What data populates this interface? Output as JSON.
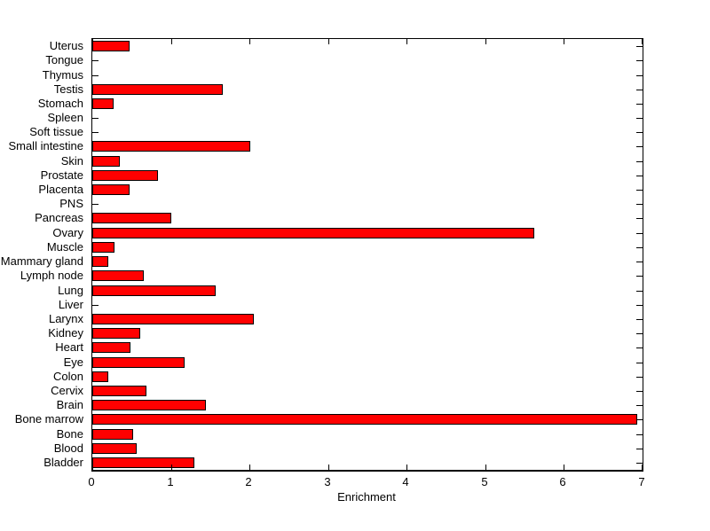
{
  "chart_data": {
    "type": "bar",
    "orientation": "horizontal",
    "title": "",
    "xlabel": "Enrichment",
    "ylabel": "",
    "xlim": [
      0,
      7
    ],
    "x_tick_labels": [
      "0",
      "1",
      "2",
      "3",
      "4",
      "5",
      "6",
      "7"
    ],
    "grid": false,
    "legend": null,
    "bar_color": "#FF0000",
    "bar_edge_color": "#000000",
    "axis_color": "#000000",
    "background_color": "#FFFFFF",
    "categories": [
      "Uterus",
      "Tongue",
      "Thymus",
      "Testis",
      "Stomach",
      "Spleen",
      "Soft tissue",
      "Small intestine",
      "Skin",
      "Prostate",
      "Placenta",
      "PNS",
      "Pancreas",
      "Ovary",
      "Muscle",
      "Mammary gland",
      "Lymph node",
      "Lung",
      "Liver",
      "Larynx",
      "Kidney",
      "Heart",
      "Eye",
      "Colon",
      "Cervix",
      "Brain",
      "Bone marrow",
      "Bone",
      "Blood",
      "Bladder"
    ],
    "values": [
      0.47,
      0,
      0,
      1.66,
      0.27,
      0,
      0,
      2.01,
      0.35,
      0.84,
      0.47,
      0,
      1.0,
      5.62,
      0.28,
      0.2,
      0.66,
      1.57,
      0,
      2.05,
      0.61,
      0.48,
      1.17,
      0.2,
      0.69,
      1.44,
      6.93,
      0.52,
      0.56,
      1.3
    ]
  }
}
